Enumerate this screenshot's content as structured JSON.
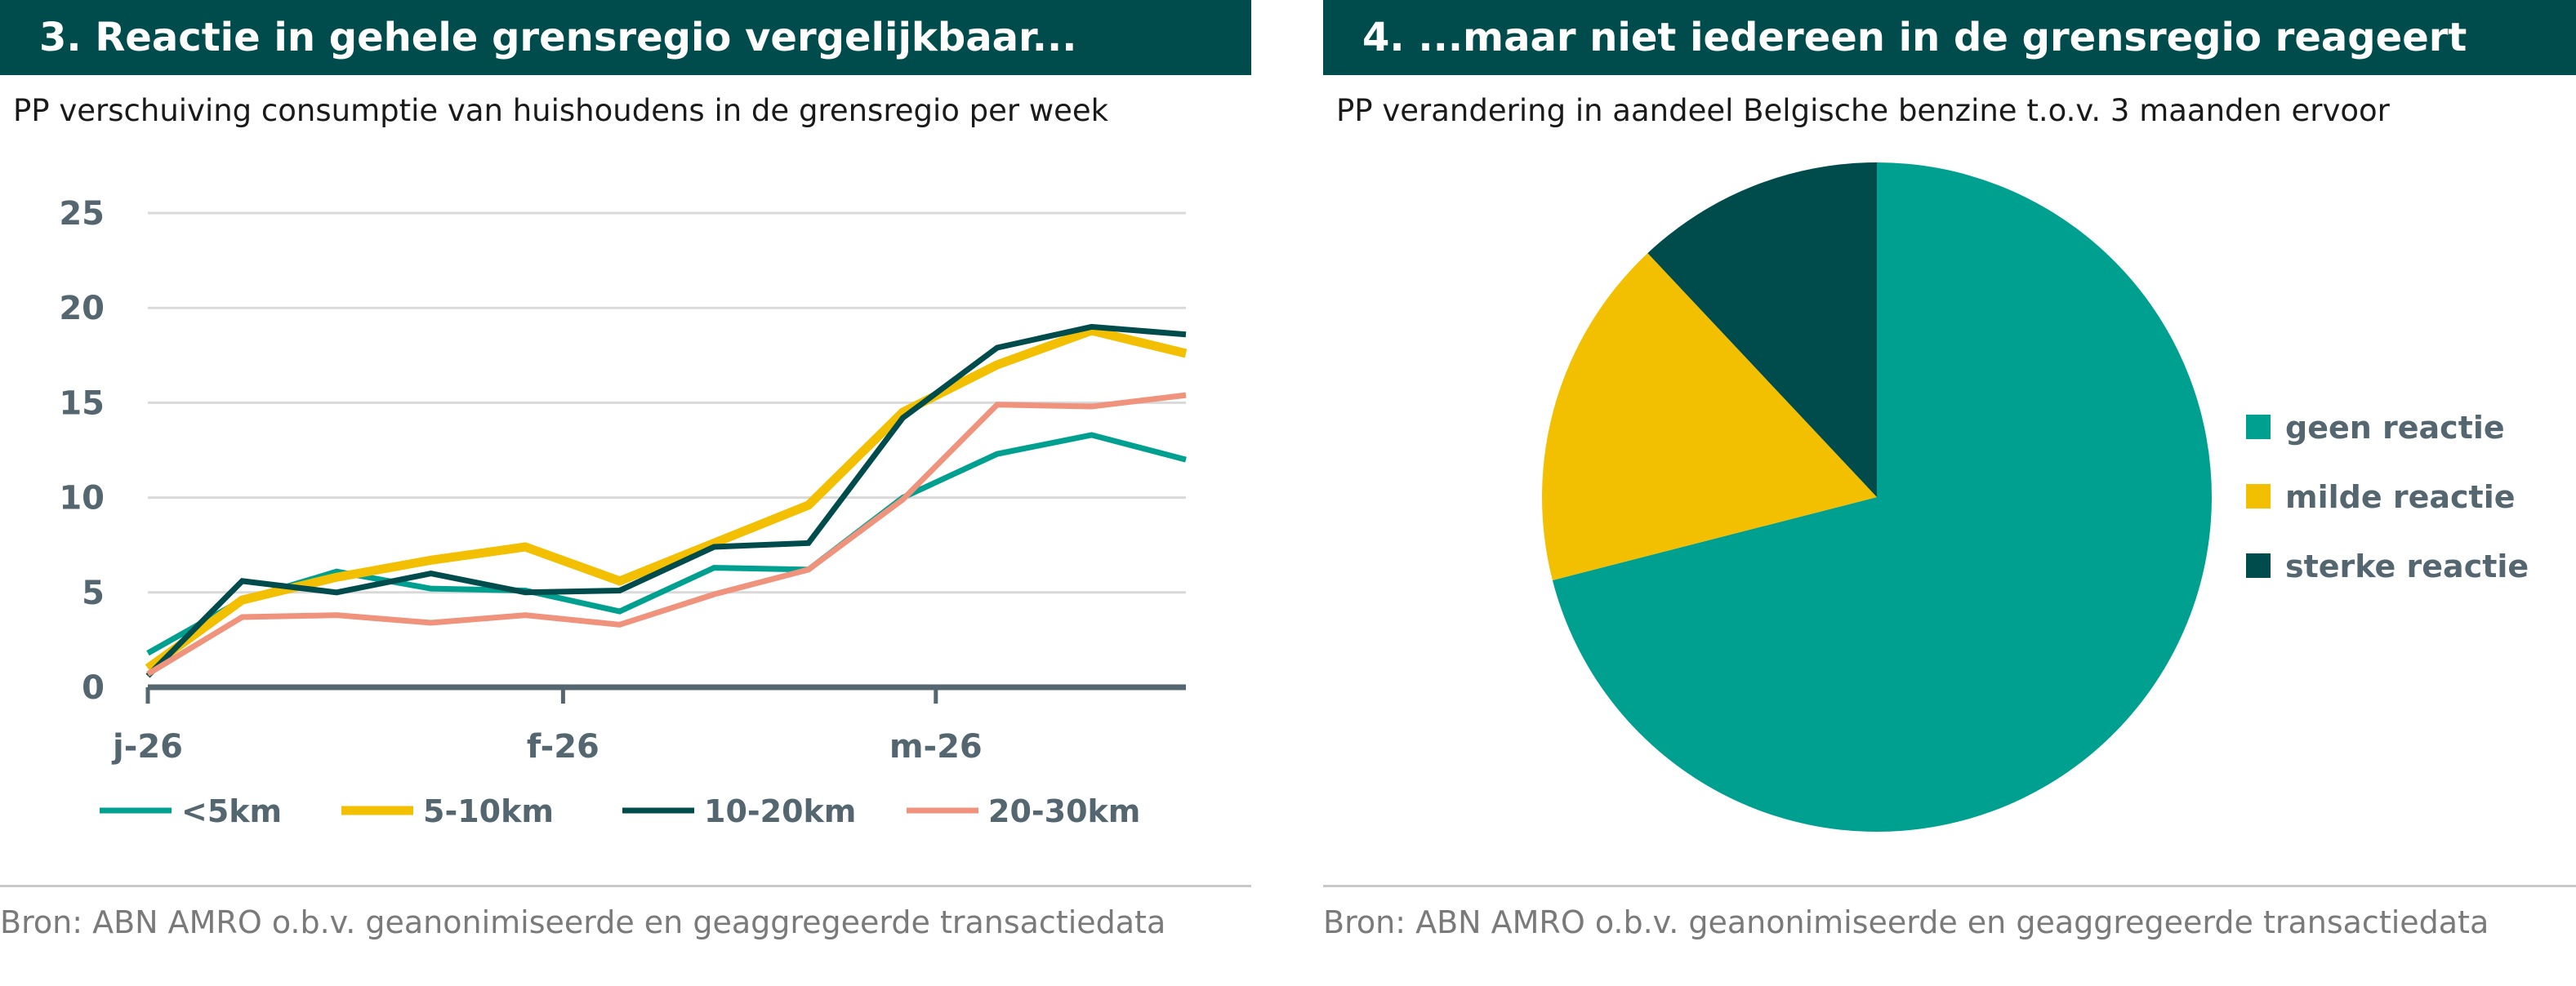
{
  "left": {
    "title": "3. Reactie in gehele grensregio vergelijkbaar...",
    "subtitle": "PP verschuiving consumptie van huishoudens in de grensregio per week",
    "source": "Bron: ABN AMRO o.b.v. geanonimiseerde en geaggregeerde transactiedata"
  },
  "right": {
    "title": "4.  ...maar niet iedereen in de grensregio reageert",
    "subtitle": "PP verandering in aandeel Belgische benzine t.o.v. 3 maanden ervoor",
    "source": "Bron: ABN AMRO o.b.v. geanonimiseerde en geaggregeerde transactiedata"
  },
  "chart_data": [
    {
      "type": "line",
      "title": "3. Reactie in gehele grensregio vergelijkbaar...",
      "ylim": [
        0,
        25
      ],
      "yticks": [
        "0",
        "5",
        "10",
        "15",
        "20",
        "25"
      ],
      "xtick_labels": [
        {
          "label": "j-26",
          "index": 0
        },
        {
          "label": "f-26",
          "index": 4.4
        },
        {
          "label": "m-26",
          "index": 8.35
        }
      ],
      "legend": "bottom",
      "series": [
        {
          "name": "<5km",
          "color": "#00a091",
          "values": [
            1.8,
            4.6,
            6.1,
            5.2,
            5.1,
            4.0,
            6.3,
            6.2,
            10.0,
            12.3,
            13.3,
            12.0
          ]
        },
        {
          "name": "5-10km",
          "color": "#f2c000",
          "values": [
            1.0,
            4.6,
            5.8,
            6.7,
            7.4,
            5.6,
            7.6,
            9.6,
            14.5,
            17.0,
            18.8,
            17.6
          ]
        },
        {
          "name": "10-20km",
          "color": "#004c4c",
          "values": [
            0.6,
            5.6,
            5.0,
            6.0,
            5.0,
            5.1,
            7.4,
            7.6,
            14.2,
            17.9,
            19.0,
            18.6
          ]
        },
        {
          "name": "20-30km",
          "color": "#f0937d",
          "values": [
            0.7,
            3.7,
            3.8,
            3.4,
            3.8,
            3.3,
            4.9,
            6.2,
            9.9,
            14.9,
            14.8,
            15.4
          ]
        }
      ]
    },
    {
      "type": "pie",
      "title": "4.  ...maar niet iedereen in de grensregio reageert",
      "legend": "right",
      "slices": [
        {
          "name": "geen reactie",
          "color": "#00a091",
          "value": 71
        },
        {
          "name": "milde reactie",
          "color": "#f2c000",
          "value": 17
        },
        {
          "name": "sterke reactie",
          "color": "#004c4c",
          "value": 12
        }
      ]
    }
  ]
}
